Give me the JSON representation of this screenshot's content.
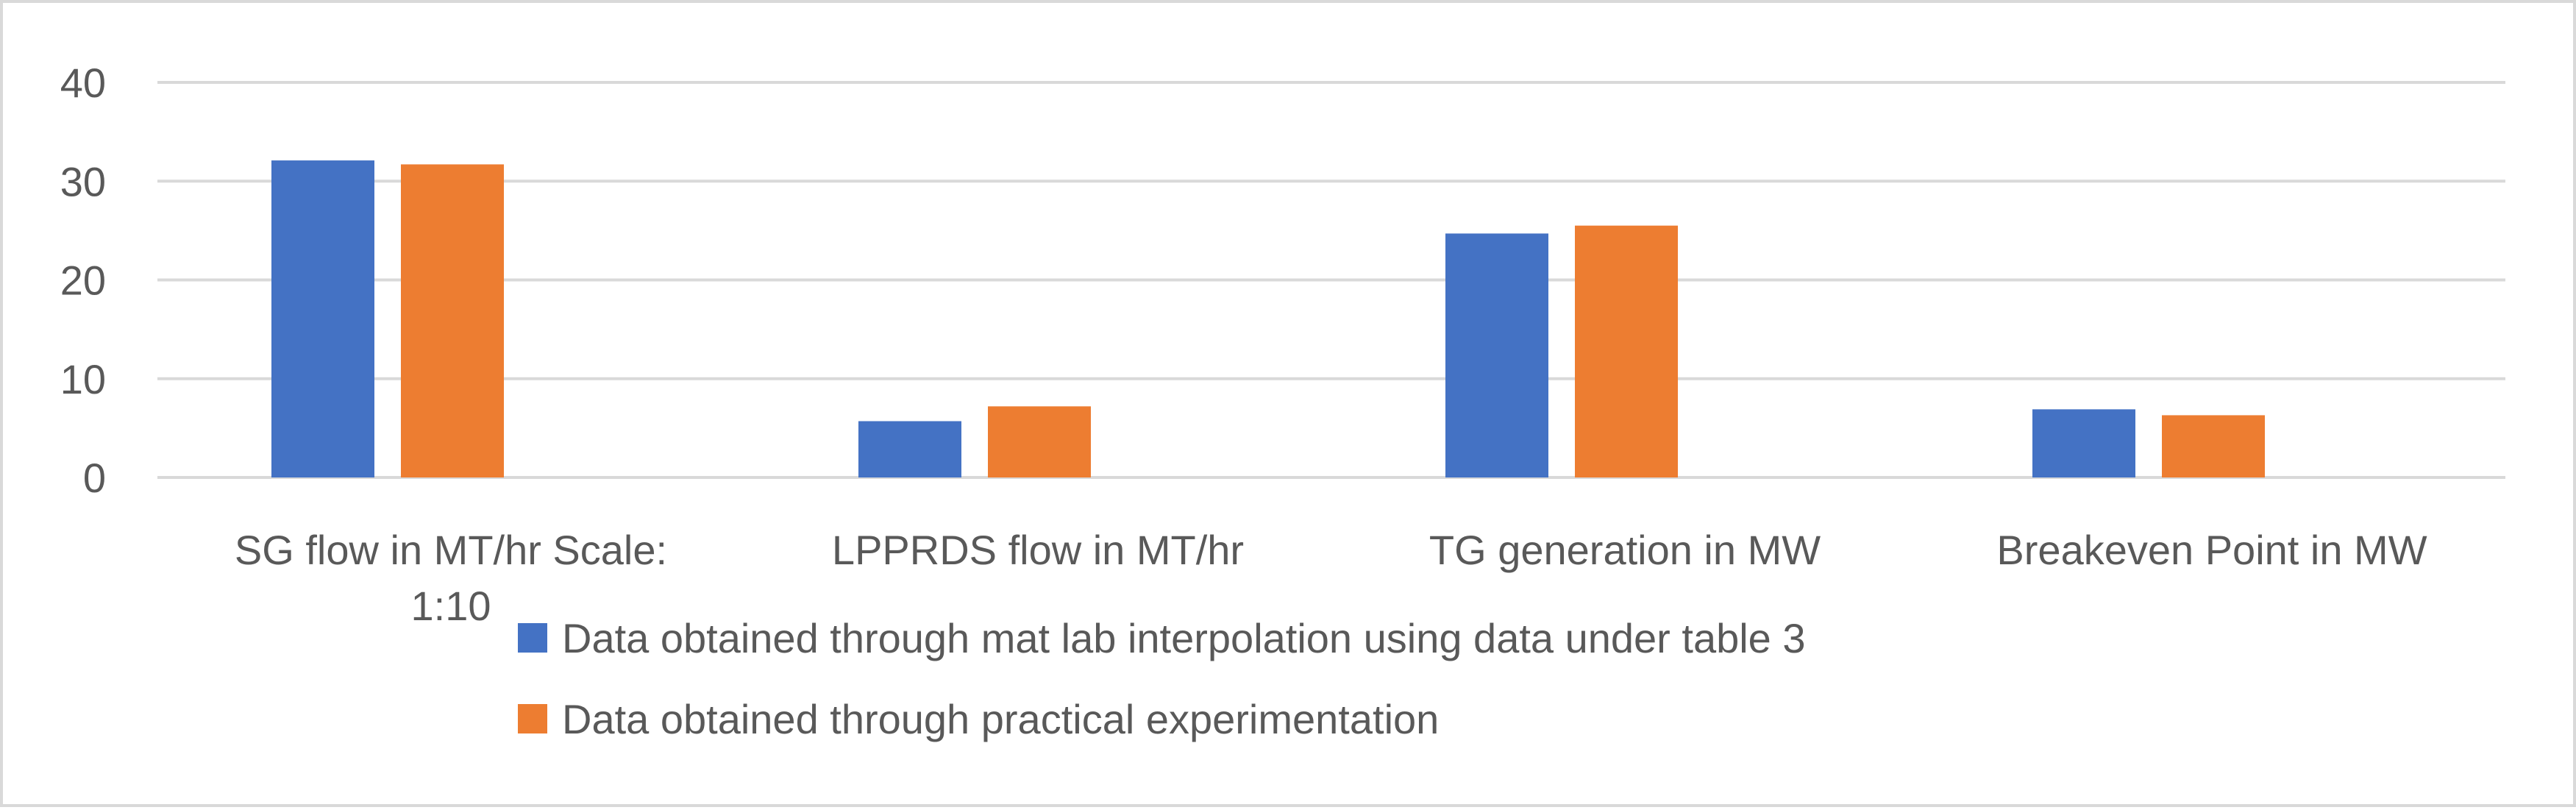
{
  "chart_data": {
    "type": "bar",
    "title": "",
    "xlabel": "",
    "ylabel": "",
    "categories": [
      [
        "SG flow in MT/hr Scale:",
        "1:10"
      ],
      [
        "LPPRDS flow in MT/hr"
      ],
      [
        "TG generation in MW"
      ],
      [
        "Breakeven Point in MW"
      ]
    ],
    "series": [
      {
        "name": "Data obtained through mat lab interpolation using data under table 3",
        "color": "#4472c4",
        "values": [
          32.1,
          5.7,
          24.7,
          6.9
        ]
      },
      {
        "name": "Data obtained through practical experimentation",
        "color": "#ed7d31",
        "values": [
          31.7,
          7.2,
          25.5,
          6.3
        ]
      }
    ],
    "ylim": [
      0,
      40
    ],
    "yticks": [
      0,
      10,
      20,
      30,
      40
    ],
    "grid": true,
    "legend": "bottom"
  }
}
